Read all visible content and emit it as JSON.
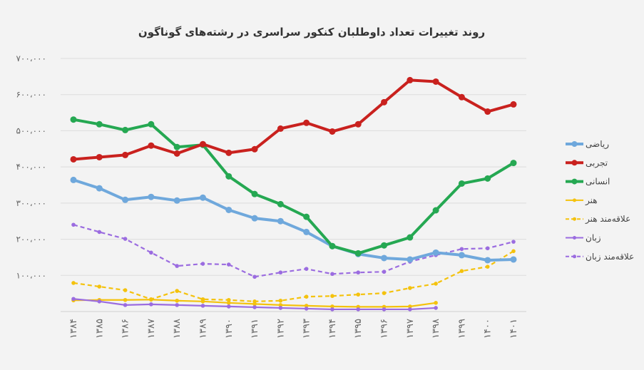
{
  "chart_data": {
    "type": "line",
    "title": "روند تغییرات تعداد داوطلبان کنکور سراسری در رشته‌های گوناگون",
    "xlabel": "",
    "ylabel": "",
    "ylim": [
      0,
      700000
    ],
    "grid": true,
    "legend_placement": "right",
    "y_tick_values": [
      100000,
      200000,
      300000,
      400000,
      500000,
      600000,
      700000
    ],
    "y_tick_labels": [
      "۱۰۰،۰۰۰",
      "۲۰۰،۰۰۰",
      "۳۰۰،۰۰۰",
      "۴۰۰،۰۰۰",
      "۵۰۰،۰۰۰",
      "۶۰۰،۰۰۰",
      "۷۰۰،۰۰۰"
    ],
    "x": [
      1384,
      1385,
      1386,
      1387,
      1388,
      1389,
      1390,
      1391,
      1392,
      1393,
      1394,
      1395,
      1396,
      1397,
      1398,
      1399,
      1400,
      1401
    ],
    "x_tick_labels": [
      "۱۳۸۴",
      "۱۳۸۵",
      "۱۳۸۶",
      "۱۳۸۷",
      "۱۳۸۸",
      "۱۳۸۹",
      "۱۳۹۰",
      "۱۳۹۱",
      "۱۳۹۲",
      "۱۳۹۳",
      "۱۳۹۴",
      "۱۳۹۵",
      "۱۳۹۶",
      "۱۳۹۷",
      "۱۳۹۸",
      "۱۳۹۹",
      "۱۴۰۰",
      "۱۴۰۱"
    ],
    "series": [
      {
        "name": "ریاضی",
        "color": "#6fa8dc",
        "style": "solid",
        "weight": "thick",
        "values": [
          364000,
          341000,
          309000,
          317000,
          307000,
          315000,
          281000,
          258000,
          250000,
          220000,
          181000,
          159000,
          148000,
          144000,
          163000,
          156000,
          142000,
          144000
        ]
      },
      {
        "name": "تجربی",
        "color": "#c9211e",
        "style": "solid",
        "weight": "thick",
        "values": [
          421000,
          427000,
          433000,
          459000,
          437000,
          463000,
          439000,
          449000,
          506000,
          522000,
          498000,
          518000,
          579000,
          640000,
          636000,
          593000,
          553000,
          573000
        ]
      },
      {
        "name": "انسانی",
        "color": "#25a852",
        "style": "solid",
        "weight": "thick",
        "values": [
          531000,
          518000,
          502000,
          518000,
          455000,
          461000,
          374000,
          325000,
          297000,
          262000,
          181000,
          161000,
          183000,
          205000,
          280000,
          354000,
          368000,
          411000
        ]
      },
      {
        "name": "هنر",
        "color": "#f4c20d",
        "style": "solid",
        "weight": "thin",
        "values": [
          31000,
          32000,
          32000,
          33000,
          30000,
          28000,
          24000,
          21000,
          18000,
          16000,
          14000,
          13000,
          13000,
          14000,
          24000,
          null,
          null,
          null
        ]
      },
      {
        "name": "علاقه‌مند هنر",
        "color": "#f4c20d",
        "style": "dashed",
        "weight": "thin",
        "values": [
          79000,
          69000,
          59000,
          34000,
          57000,
          34000,
          32000,
          28000,
          30000,
          41000,
          43000,
          47000,
          51000,
          65000,
          77000,
          112000,
          124000,
          167000
        ]
      },
      {
        "name": "زبان",
        "color": "#9b6ce0",
        "style": "solid",
        "weight": "thin",
        "values": [
          35000,
          28000,
          18000,
          20000,
          18000,
          16000,
          14000,
          12000,
          10000,
          8000,
          6000,
          6000,
          6000,
          6000,
          10000,
          null,
          null,
          null
        ]
      },
      {
        "name": "علاقه‌مند زبان",
        "color": "#9b6ce0",
        "style": "dashed",
        "weight": "thin",
        "values": [
          240000,
          220000,
          201000,
          163000,
          126000,
          132000,
          130000,
          96000,
          108000,
          118000,
          104000,
          108000,
          110000,
          138000,
          156000,
          173000,
          175000,
          193000
        ]
      }
    ]
  }
}
